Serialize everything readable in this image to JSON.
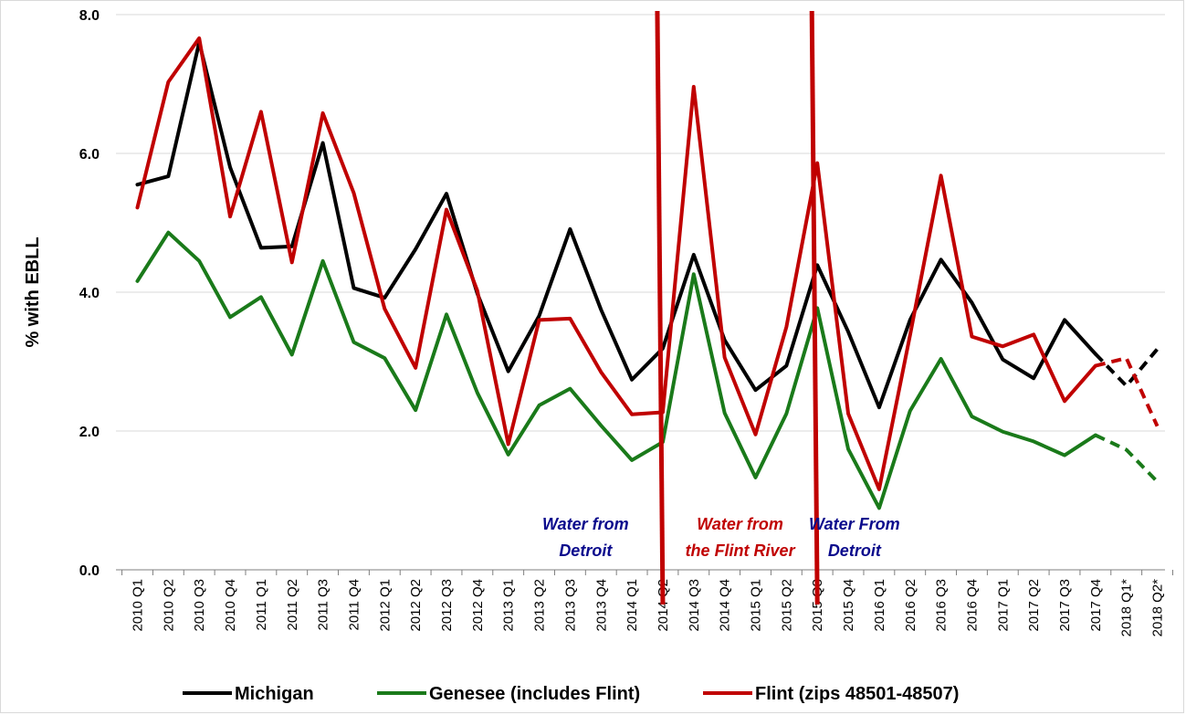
{
  "chart_data": {
    "type": "line",
    "ylabel": "% with EBLL",
    "xlabel": "",
    "title": "",
    "ylim": [
      0,
      8
    ],
    "yticks": [
      "0.0",
      "2.0",
      "4.0",
      "6.0",
      "8.0"
    ],
    "ytick_values": [
      0,
      2,
      4,
      6,
      8
    ],
    "grid": "horizontal",
    "legend_position": "bottom",
    "categories": [
      "2010 Q1",
      "2010 Q2",
      "2010 Q3",
      "2010 Q4",
      "2011 Q1",
      "2011 Q2",
      "2011 Q3",
      "2011 Q4",
      "2012 Q1",
      "2012 Q2",
      "2012 Q3",
      "2012 Q4",
      "2013 Q1",
      "2013 Q2",
      "2013 Q3",
      "2013 Q4",
      "2014 Q1",
      "2014 Q2",
      "2014 Q3",
      "2014 Q4",
      "2015 Q1",
      "2015 Q2",
      "2015 Q3",
      "2015 Q4",
      "2016 Q1",
      "2016 Q2",
      "2016 Q3",
      "2016 Q4",
      "2017 Q1",
      "2017 Q2",
      "2017 Q3",
      "2017 Q4",
      "2018 Q1*",
      "2018 Q2*"
    ],
    "series": [
      {
        "name": "Michigan",
        "color": "#000000",
        "dashed_from_index": 31,
        "values": [
          5.55,
          5.67,
          7.6,
          5.8,
          4.64,
          4.66,
          6.15,
          4.06,
          3.92,
          4.62,
          5.42,
          3.98,
          2.86,
          3.66,
          4.91,
          3.75,
          2.74,
          3.19,
          4.54,
          3.31,
          2.59,
          2.94,
          4.39,
          3.43,
          2.34,
          3.6,
          4.47,
          3.85,
          3.03,
          2.76,
          3.6,
          3.11,
          2.65,
          3.18
        ]
      },
      {
        "name": "Genesee (includes Flint)",
        "color": "#1a7a1a",
        "dashed_from_index": 31,
        "values": [
          4.16,
          4.86,
          4.45,
          3.64,
          3.93,
          3.1,
          4.45,
          3.28,
          3.05,
          2.3,
          3.68,
          2.55,
          1.66,
          2.37,
          2.61,
          2.08,
          1.58,
          1.84,
          4.26,
          2.26,
          1.33,
          2.25,
          3.77,
          1.74,
          0.89,
          2.29,
          3.04,
          2.21,
          1.99,
          1.85,
          1.65,
          1.94,
          1.73,
          1.27
        ]
      },
      {
        "name": "Flint (zips 48501-48507)",
        "color": "#c00000",
        "dashed_from_index": 31,
        "values": [
          5.22,
          7.03,
          7.66,
          5.09,
          6.6,
          4.43,
          6.58,
          5.43,
          3.76,
          2.91,
          5.19,
          4.02,
          1.81,
          3.6,
          3.62,
          2.85,
          2.24,
          2.27,
          6.96,
          3.06,
          1.95,
          3.5,
          5.86,
          2.25,
          1.16,
          3.38,
          5.68,
          3.36,
          3.22,
          3.39,
          2.43,
          2.94,
          3.05,
          2.07
        ]
      }
    ],
    "markers": [
      {
        "after_index": 17,
        "color": "#c00000"
      },
      {
        "after_index": 22,
        "color": "#c00000"
      }
    ],
    "annotations": [
      {
        "lines": [
          "Water from",
          "Detroit"
        ],
        "color": "#0a0a8c"
      },
      {
        "lines": [
          "Water from",
          "the Flint River"
        ],
        "color": "#c00000"
      },
      {
        "lines": [
          "Water From",
          "Detroit"
        ],
        "color": "#0a0a8c"
      }
    ]
  }
}
